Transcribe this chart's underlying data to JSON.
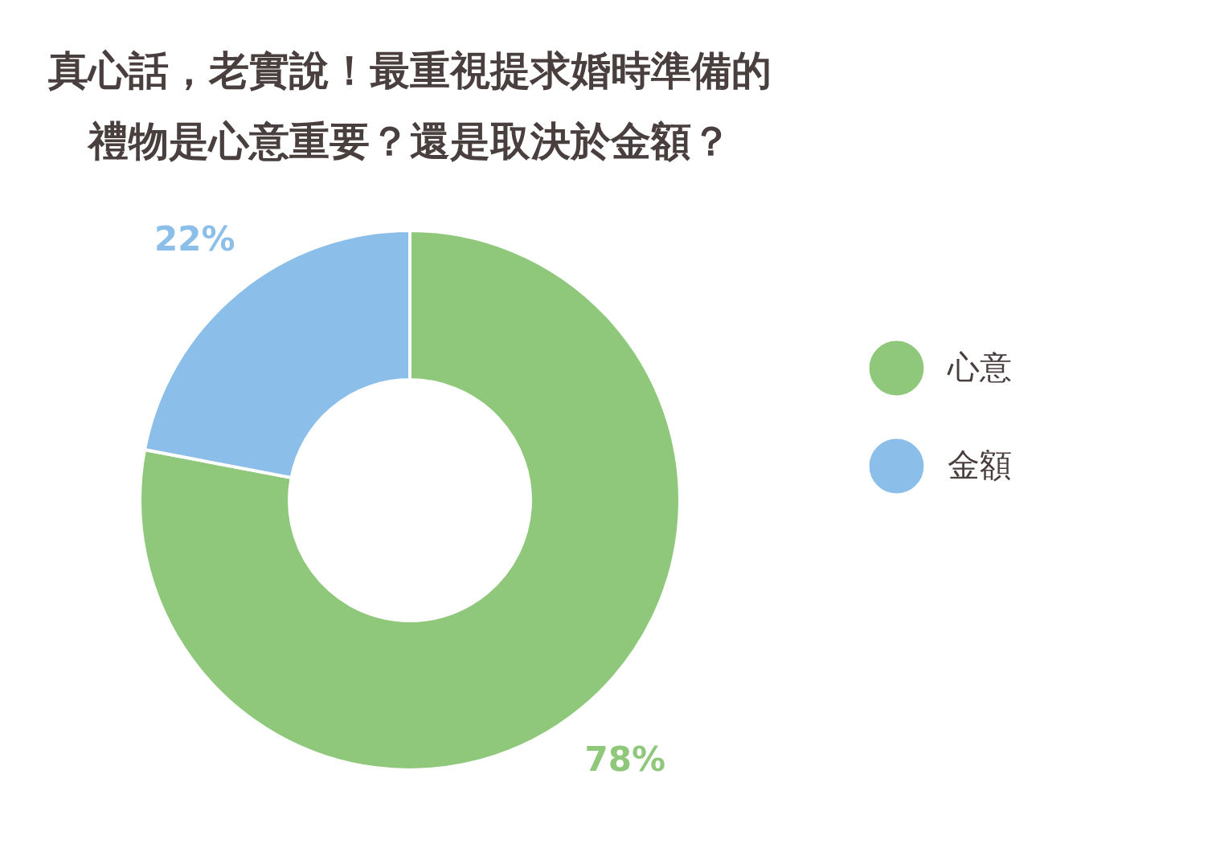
{
  "chart_data": {
    "type": "donut",
    "title": "真心話，老實說！最重視提求婚時準備的禮物是心意重要？還是取決於金額？",
    "categories": [
      "心意",
      "金額"
    ],
    "values": [
      78,
      22
    ],
    "colors": [
      "#8fc87a",
      "#8bbfe9"
    ],
    "value_labels": [
      "78%",
      "22%"
    ],
    "legend": "right"
  }
}
